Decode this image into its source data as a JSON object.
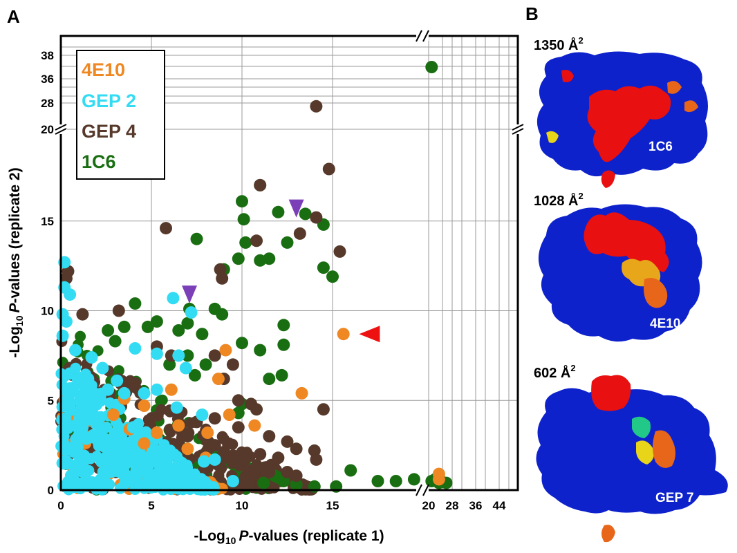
{
  "panel_a_label": "A",
  "panel_b_label": "B",
  "chart_data": {
    "type": "scatter",
    "xlabel": "-Log10 P-values (replicate 1)",
    "ylabel": "-Log10 P-values (replicate 2)",
    "xlabel_prefix": "-Log",
    "xlabel_sub": "10",
    "xlabel_italic": "P",
    "xlabel_suffix": "-values (replicate 1)",
    "ylabel_prefix": "-Log",
    "ylabel_sub": "10",
    "ylabel_italic": "P",
    "ylabel_suffix": "-values (replicate 2)",
    "x_ticks": [
      "0",
      "5",
      "10",
      "15",
      "20",
      "28",
      "36",
      "44"
    ],
    "y_ticks": [
      "0",
      "5",
      "10",
      "15",
      "20",
      "28",
      "36",
      "38"
    ],
    "xlim_main": [
      0,
      20
    ],
    "ylim_main": [
      0,
      20
    ],
    "x_broken_ticks": [
      20,
      28,
      36,
      44
    ],
    "y_broken_ticks": [
      20,
      28,
      36,
      38
    ],
    "grid": true,
    "legend_position": "top-left",
    "series": [
      {
        "name": "1C6",
        "color": "#1a6e12",
        "points": [
          [
            21,
            37
          ],
          [
            14.5,
            14.8
          ],
          [
            13.5,
            15.4
          ],
          [
            12,
            15.5
          ],
          [
            10,
            16.1
          ],
          [
            10.1,
            15.1
          ],
          [
            11,
            17
          ],
          [
            12.5,
            13.8
          ],
          [
            11.5,
            12.9
          ],
          [
            10.2,
            13.8
          ],
          [
            11,
            12.8
          ],
          [
            9.8,
            12.9
          ],
          [
            14.5,
            12.4
          ],
          [
            15,
            11.9
          ],
          [
            9,
            12.3
          ],
          [
            7.5,
            14
          ],
          [
            7.1,
            10.1
          ],
          [
            8.5,
            10.1
          ],
          [
            8.9,
            9.8
          ],
          [
            10,
            8.2
          ],
          [
            11,
            7.8
          ],
          [
            12.3,
            9.2
          ],
          [
            12.3,
            8.1
          ],
          [
            11.5,
            6.2
          ],
          [
            12.2,
            6.4
          ],
          [
            7.8,
            8.7
          ],
          [
            7,
            9.3
          ],
          [
            6.5,
            8.9
          ],
          [
            5.3,
            9.4
          ],
          [
            4.8,
            9.1
          ],
          [
            4.1,
            10.4
          ],
          [
            3.5,
            9.1
          ],
          [
            2.6,
            8.9
          ],
          [
            3,
            8.3
          ],
          [
            7,
            7.5
          ],
          [
            6,
            7
          ],
          [
            8,
            7
          ],
          [
            7.4,
            6.4
          ],
          [
            10,
            4.8
          ],
          [
            9.8,
            4.3
          ],
          [
            16,
            1.1
          ],
          [
            17.5,
            0.5
          ],
          [
            18.5,
            0.5
          ],
          [
            19.5,
            0.6
          ],
          [
            21,
            0.5
          ],
          [
            22.2,
            0.6
          ],
          [
            23.5,
            0.4
          ],
          [
            24.2,
            0.5
          ],
          [
            26,
            0.4
          ],
          [
            12.3,
            0.5
          ],
          [
            12,
            0.7
          ],
          [
            14,
            0.2
          ],
          [
            13,
            0.3
          ],
          [
            11.2,
            0.4
          ],
          [
            11.8,
            0.8
          ],
          [
            15.2,
            0.2
          ]
        ]
      },
      {
        "name": "GEP 4",
        "color": "#56392b",
        "points": [
          [
            14.1,
            27
          ],
          [
            14.8,
            17.9
          ],
          [
            11,
            17
          ],
          [
            13.2,
            14.3
          ],
          [
            14.1,
            15.2
          ],
          [
            15.4,
            13.3
          ],
          [
            10.8,
            13.9
          ],
          [
            8.8,
            12.3
          ],
          [
            8.9,
            11.8
          ],
          [
            5.8,
            14.6
          ],
          [
            0.4,
            12.2
          ],
          [
            0.3,
            11.8
          ],
          [
            1.2,
            9.8
          ],
          [
            3.2,
            10
          ],
          [
            5.3,
            8
          ],
          [
            6.1,
            7.5
          ],
          [
            9.5,
            7
          ],
          [
            8.5,
            7.5
          ],
          [
            9,
            6.2
          ],
          [
            9.8,
            5
          ],
          [
            10.5,
            4.8
          ],
          [
            10.8,
            4.5
          ],
          [
            11.5,
            3
          ],
          [
            12.5,
            2.7
          ],
          [
            14,
            2.2
          ],
          [
            14.1,
            1.7
          ],
          [
            14.5,
            4.5
          ],
          [
            13,
            2.3
          ],
          [
            12,
            1.8
          ],
          [
            11,
            2
          ],
          [
            9.8,
            3.5
          ],
          [
            8.5,
            4
          ],
          [
            7.5,
            3.8
          ],
          [
            7,
            3
          ],
          [
            8.5,
            2.5
          ],
          [
            9,
            1.8
          ],
          [
            10,
            2
          ],
          [
            11.5,
            1
          ],
          [
            12.5,
            1
          ],
          [
            13,
            0.8
          ],
          [
            10.5,
            1.1
          ]
        ]
      },
      {
        "name": "4E10",
        "color": "#ef8722",
        "points": [
          [
            15.6,
            8.7
          ],
          [
            9.1,
            7.8
          ],
          [
            13.3,
            5.4
          ],
          [
            9.3,
            4.2
          ],
          [
            10.7,
            3.6
          ],
          [
            8.7,
            6.2
          ],
          [
            8.1,
            3.2
          ],
          [
            6.1,
            5.6
          ],
          [
            5.3,
            3.2
          ],
          [
            4.6,
            2.6
          ],
          [
            3.5,
            5.1
          ],
          [
            2.9,
            4.2
          ],
          [
            3.8,
            3.4
          ],
          [
            4.6,
            4.7
          ],
          [
            6.5,
            3.6
          ],
          [
            7,
            2.3
          ],
          [
            8,
            1.8
          ],
          [
            23.5,
            0.6
          ],
          [
            23.5,
            0.9
          ]
        ]
      },
      {
        "name": "GEP 2",
        "color": "#33dcf3",
        "points": [
          [
            0.2,
            12.7
          ],
          [
            0.2,
            11.3
          ],
          [
            0.5,
            10.9
          ],
          [
            0.3,
            9.4
          ],
          [
            0.1,
            8.6
          ],
          [
            0.1,
            9.8
          ],
          [
            6.2,
            10.7
          ],
          [
            7.2,
            9.9
          ],
          [
            6.5,
            7.5
          ],
          [
            4.1,
            7.9
          ],
          [
            5.3,
            7.6
          ],
          [
            6.9,
            6.8
          ],
          [
            1.7,
            7.4
          ],
          [
            2.3,
            6.8
          ],
          [
            3.1,
            6.1
          ],
          [
            2.6,
            5.6
          ],
          [
            3.5,
            5.4
          ],
          [
            4.6,
            5.4
          ],
          [
            5.3,
            5.6
          ],
          [
            6.4,
            4.6
          ],
          [
            7.8,
            4.2
          ],
          [
            8.5,
            1.7
          ],
          [
            7.9,
            1.6
          ],
          [
            7.1,
            0.9
          ],
          [
            9.5,
            0.5
          ],
          [
            0.8,
            7.8
          ],
          [
            1.5,
            6.2
          ],
          [
            2.2,
            5.0
          ],
          [
            4.0,
            3.5
          ]
        ]
      }
    ],
    "annotations": {
      "purple_markers": [
        [
          7.1,
          10.9
        ],
        [
          13.0,
          15.7
        ]
      ],
      "red_marker": [
        17.0,
        8.7
      ],
      "marker_color_purple": "#7b3fb8",
      "marker_color_red": "#ee1111"
    }
  },
  "structures": [
    {
      "area": "1350 Å",
      "area_sup": "2",
      "label": "1C6"
    },
    {
      "area": "1028 Å",
      "area_sup": "2",
      "label": "4E10"
    },
    {
      "area": "602 Å",
      "area_sup": "2",
      "label": "GEP 7"
    }
  ],
  "colors": {
    "surface_blue": "#0e22cc",
    "epitope_red": "#e81010",
    "epitope_orange": "#e8661a",
    "epitope_yellow": "#e8d418",
    "epitope_green": "#22c888",
    "axis": "#000000"
  }
}
